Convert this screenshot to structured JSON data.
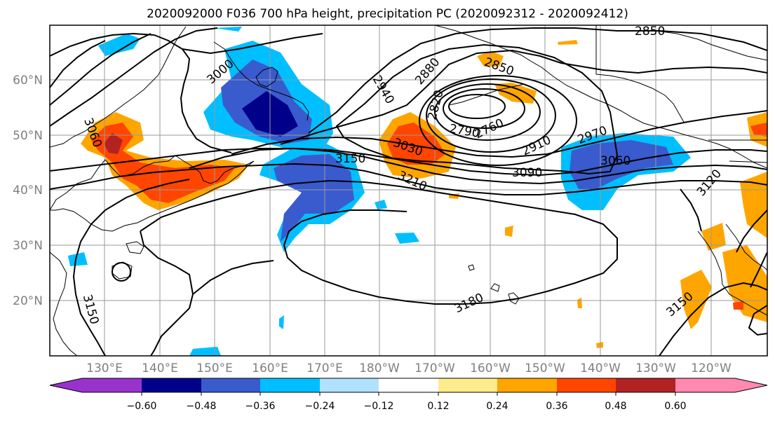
{
  "figure": {
    "title": "2020092000 F036 700 hPa height, precipitation PC (2020092312 - 2020092412)"
  },
  "map": {
    "lat_ticks": [
      "60°N",
      "50°N",
      "40°N",
      "30°N",
      "20°N"
    ],
    "lon_ticks": [
      "130°E",
      "140°E",
      "150°E",
      "160°E",
      "170°E",
      "180°W",
      "170°W",
      "160°W",
      "150°W",
      "140°W",
      "130°W",
      "120°W"
    ],
    "contour_labels": [
      "2850",
      "3000",
      "2880",
      "2850",
      "2940",
      "2820",
      "3060",
      "2790",
      "2760",
      "3030",
      "2970",
      "2910",
      "3150",
      "3060",
      "3090",
      "3210",
      "3120",
      "3180",
      "3150",
      "3150"
    ],
    "grid": true,
    "coastlines": true
  },
  "colorbar": {
    "tick_labels": [
      "−0.60",
      "−0.48",
      "−0.36",
      "−0.24",
      "−0.12",
      "0.12",
      "0.24",
      "0.36",
      "0.48",
      "0.60"
    ],
    "colors": [
      "#9932CC",
      "#00008B",
      "#3A5BCD",
      "#00BFFF",
      "#B0E2FF",
      "#FFFFFF",
      "#FFEC8B",
      "#FFA500",
      "#FF4500",
      "#B22222",
      "#FF89B0"
    ],
    "extend": "both"
  }
}
